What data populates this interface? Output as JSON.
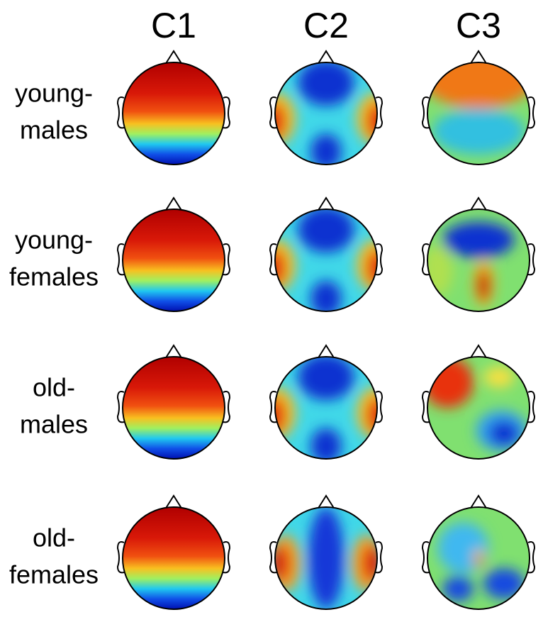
{
  "columns": [
    "C1",
    "C2",
    "C3"
  ],
  "rows": [
    {
      "label": [
        "young-",
        "males"
      ]
    },
    {
      "label": [
        "young-",
        "females"
      ]
    },
    {
      "label": [
        "old-",
        "males"
      ]
    },
    {
      "label": [
        "old-",
        "females"
      ]
    }
  ]
}
